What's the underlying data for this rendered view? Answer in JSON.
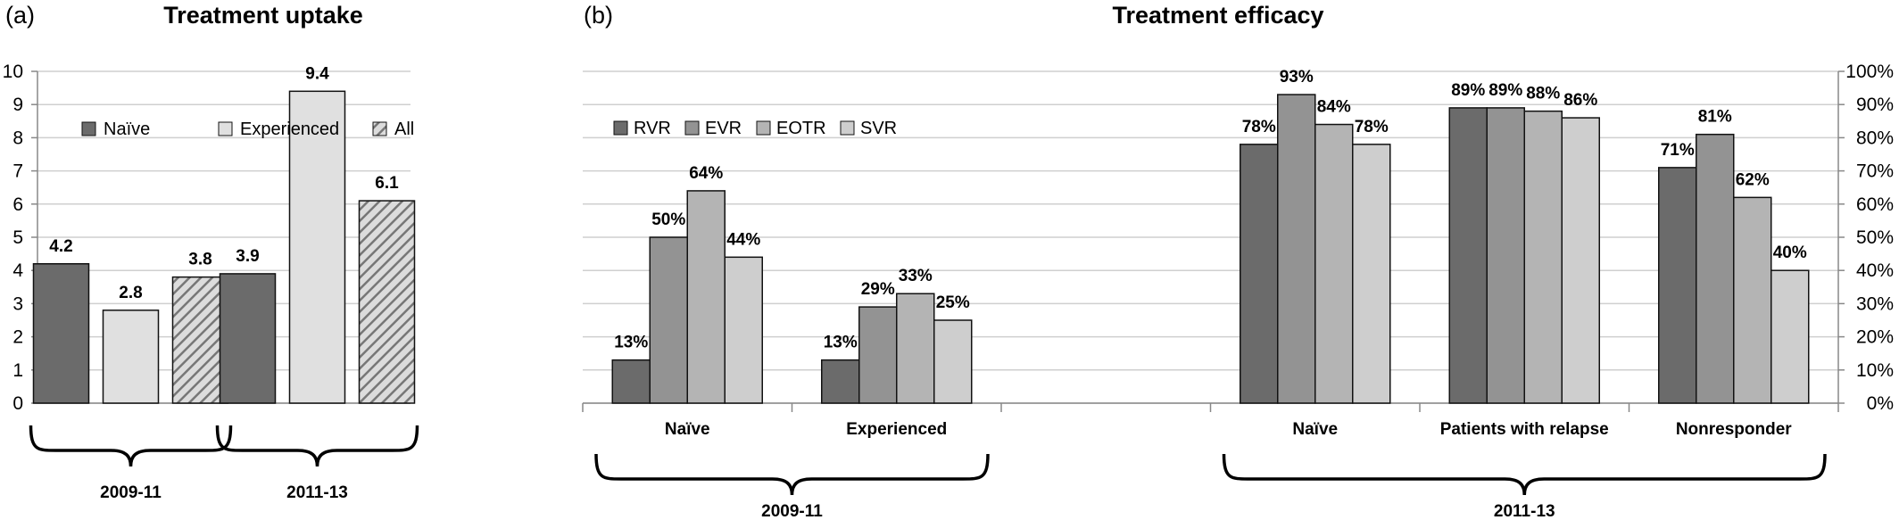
{
  "chart_data": [
    {
      "type": "bar",
      "panel_label": "(a)",
      "title": "Treatment uptake",
      "ylim": [
        0,
        10
      ],
      "yticks": [
        "0",
        "1",
        "2",
        "3",
        "4",
        "5",
        "6",
        "7",
        "8",
        "9",
        "10"
      ],
      "groups": [
        "2009-11",
        "2011-13"
      ],
      "series": [
        {
          "name": "Naïve",
          "color": "#6b6b6b",
          "pattern": "solid",
          "values": [
            4.2,
            3.9
          ],
          "labels": [
            "4.2",
            "3.9"
          ]
        },
        {
          "name": "Experienced",
          "color": "#e0e0e0",
          "pattern": "solid",
          "values": [
            2.8,
            9.4
          ],
          "labels": [
            "2.8",
            "9.4"
          ]
        },
        {
          "name": "All",
          "color": "#9a9a9a",
          "pattern": "hatch",
          "values": [
            3.8,
            6.1
          ],
          "labels": [
            "3.8",
            "6.1"
          ]
        }
      ],
      "grid": true,
      "legend_position": "top-left"
    },
    {
      "type": "bar",
      "panel_label": "(b)",
      "title": "Treatment efficacy",
      "ylim": [
        0,
        100
      ],
      "yticks": [
        "0%",
        "10%",
        "20%",
        "30%",
        "40%",
        "50%",
        "60%",
        "70%",
        "80%",
        "90%",
        "100%"
      ],
      "categories": [
        "Naïve",
        "Experienced",
        "",
        "Naïve",
        "Patients with relapse",
        "Nonresponder"
      ],
      "groups": [
        {
          "label": "2009-11",
          "categories": [
            0,
            1
          ]
        },
        {
          "label": "2011-13",
          "categories": [
            3,
            4,
            5
          ]
        }
      ],
      "series": [
        {
          "name": "RVR",
          "color": "#6b6b6b",
          "values": [
            13,
            13,
            null,
            78,
            89,
            71
          ],
          "labels": [
            "13%",
            "13%",
            "",
            "78%",
            "89%",
            "71%"
          ]
        },
        {
          "name": "EVR",
          "color": "#939393",
          "values": [
            50,
            29,
            null,
            93,
            89,
            81
          ],
          "labels": [
            "50%",
            "29%",
            "",
            "93%",
            "89%",
            "81%"
          ]
        },
        {
          "name": "EOTR",
          "color": "#b4b4b4",
          "values": [
            64,
            33,
            null,
            84,
            88,
            62
          ],
          "labels": [
            "64%",
            "33%",
            "",
            "84%",
            "88%",
            "62%"
          ]
        },
        {
          "name": "SVR",
          "color": "#cecece",
          "values": [
            44,
            25,
            null,
            78,
            86,
            40
          ],
          "labels": [
            "44%",
            "25%",
            "",
            "78%",
            "86%",
            "40%"
          ]
        }
      ],
      "grid": true,
      "y_axis_side": "right",
      "legend_position": "top-left"
    }
  ]
}
